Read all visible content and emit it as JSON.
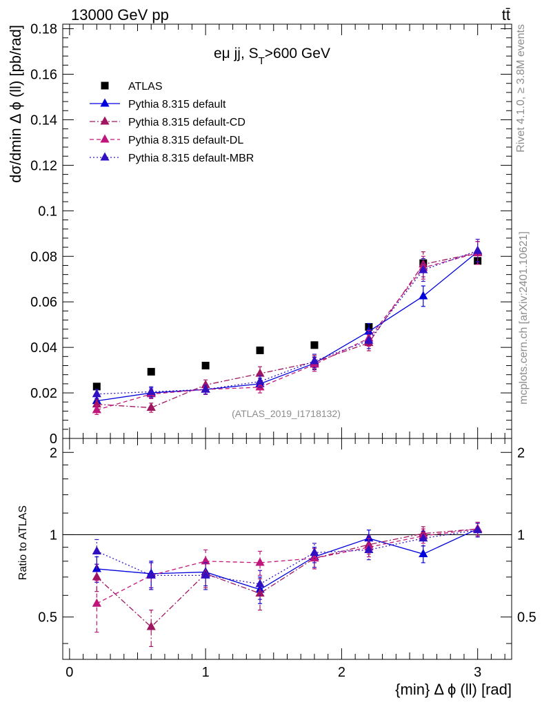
{
  "header": {
    "left": "13000 GeV pp",
    "right": "tt̄"
  },
  "side_text": {
    "rivet": "Rivet 4.1.0, ≥ 3.8M events",
    "mcplots": "mcplots.cern.ch [arXiv:2401.10621]"
  },
  "chart_data": [
    {
      "type": "scatter",
      "panel": "main",
      "title": "eμ jj, S_T>600 GeV",
      "title_main": "eμ jj, S",
      "title_sub": "T",
      "title_tail": ">600 GeV",
      "xlabel": "{min} Δ ϕ (ll) [rad]",
      "ylabel": "dσ/dmin Δ ϕ (ll) [pb/rad]",
      "xlim": [
        -0.05,
        3.25
      ],
      "ylim": [
        0,
        0.182
      ],
      "yticks": [
        0,
        0.02,
        0.04,
        0.06,
        0.08,
        0.1,
        0.12,
        0.14,
        0.16,
        0.18
      ],
      "ytick_labels": [
        "0",
        "0.02",
        "0.04",
        "0.06",
        "0.08",
        "0.1",
        "0.12",
        "0.14",
        "0.16",
        "0.18"
      ],
      "watermark": "(ATLAS_2019_I1718132)",
      "x": [
        0.2,
        0.6,
        1.0,
        1.4,
        1.8,
        2.2,
        2.6,
        3.0
      ],
      "legend_position": "top-left",
      "series": [
        {
          "name": "ATLAS",
          "color": "#000000",
          "marker": "square",
          "line": "none",
          "values": [
            0.0228,
            0.0293,
            0.032,
            0.0387,
            0.041,
            0.049,
            0.077,
            0.078
          ],
          "errors": [
            0,
            0,
            0,
            0,
            0,
            0,
            0,
            0
          ]
        },
        {
          "name": "Pythia 8.315 default",
          "color": "#0000dd",
          "marker": "triangle",
          "line": "solid",
          "values": [
            0.0165,
            0.02,
            0.0215,
            0.024,
            0.033,
            0.047,
            0.0625,
            0.082
          ],
          "errors": [
            0.002,
            0.0022,
            0.002,
            0.0025,
            0.0028,
            0.0035,
            0.0045,
            0.0045
          ]
        },
        {
          "name": "Pythia 8.315 default-CD",
          "color": "#a01560",
          "marker": "triangle",
          "line": "dashdot",
          "values": [
            0.015,
            0.0135,
            0.0235,
            0.0285,
            0.0335,
            0.042,
            0.0765,
            0.0815
          ],
          "errors": [
            0.002,
            0.002,
            0.0022,
            0.003,
            0.003,
            0.0035,
            0.0055,
            0.005
          ]
        },
        {
          "name": "Pythia 8.315 default-DL",
          "color": "#c0157a",
          "marker": "triangle",
          "line": "dashed",
          "values": [
            0.0125,
            0.0195,
            0.0215,
            0.0225,
            0.0325,
            0.044,
            0.075,
            0.0815
          ],
          "errors": [
            0.002,
            0.002,
            0.0022,
            0.0025,
            0.003,
            0.0035,
            0.005,
            0.005
          ]
        },
        {
          "name": "Pythia 8.315 default-MBR",
          "color": "#3010c0",
          "marker": "triangle",
          "line": "dotted",
          "values": [
            0.0195,
            0.0205,
            0.0215,
            0.025,
            0.034,
            0.043,
            0.074,
            0.0825
          ],
          "errors": [
            0.002,
            0.0022,
            0.002,
            0.0025,
            0.003,
            0.0035,
            0.005,
            0.005
          ]
        }
      ]
    },
    {
      "type": "scatter",
      "panel": "ratio",
      "ylabel": "Ratio to ATLAS",
      "xlabel": "{min} Δ ϕ (ll) [rad]",
      "xlim": [
        -0.05,
        3.25
      ],
      "ylim": [
        0.35,
        2.25
      ],
      "yscale": "log",
      "reference_line": 1,
      "yticks": [
        0.5,
        1,
        2
      ],
      "ytick_labels": [
        "0.5",
        "1",
        "2"
      ],
      "xticks": [
        0,
        1,
        2,
        3
      ],
      "xtick_labels": [
        "0",
        "1",
        "2",
        "3"
      ],
      "x": [
        0.2,
        0.6,
        1.0,
        1.4,
        1.8,
        2.2,
        2.6,
        3.0
      ],
      "series": [
        {
          "name": "Pythia 8.315 default",
          "color": "#0000dd",
          "marker": "triangle",
          "line": "solid",
          "values": [
            0.75,
            0.72,
            0.73,
            0.63,
            0.83,
            0.97,
            0.85,
            1.05
          ],
          "errors": [
            0.08,
            0.08,
            0.08,
            0.07,
            0.07,
            0.07,
            0.06,
            0.06
          ]
        },
        {
          "name": "Pythia 8.315 default-CD",
          "color": "#a01560",
          "marker": "triangle",
          "line": "dashdot",
          "values": [
            0.7,
            0.46,
            0.72,
            0.61,
            0.82,
            0.92,
            1.01,
            1.05
          ],
          "errors": [
            0.08,
            0.07,
            0.08,
            0.08,
            0.07,
            0.07,
            0.06,
            0.06
          ]
        },
        {
          "name": "Pythia 8.315 default-DL",
          "color": "#c0157a",
          "marker": "triangle",
          "line": "dashed",
          "values": [
            0.56,
            0.71,
            0.8,
            0.79,
            0.82,
            0.9,
            0.99,
            1.05
          ],
          "errors": [
            0.12,
            0.08,
            0.08,
            0.08,
            0.07,
            0.07,
            0.06,
            0.06
          ]
        },
        {
          "name": "Pythia 8.315 default-MBR",
          "color": "#3010c0",
          "marker": "triangle",
          "line": "dotted",
          "values": [
            0.87,
            0.71,
            0.71,
            0.66,
            0.86,
            0.88,
            0.97,
            1.04
          ],
          "errors": [
            0.09,
            0.08,
            0.08,
            0.08,
            0.07,
            0.07,
            0.06,
            0.06
          ]
        }
      ]
    }
  ]
}
